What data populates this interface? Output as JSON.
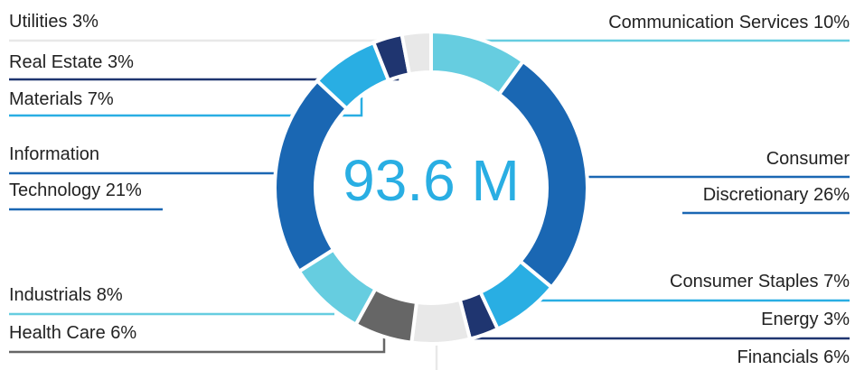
{
  "chart_data": {
    "type": "donut",
    "center_label": "93.6 M",
    "categories": [
      "Communication Services",
      "Consumer Discretionary",
      "Consumer Staples",
      "Energy",
      "Financials",
      "Health Care",
      "Industrials",
      "Information Technology",
      "Materials",
      "Real Estate",
      "Utilities"
    ],
    "values": [
      10,
      26,
      7,
      3,
      6,
      6,
      8,
      21,
      7,
      3,
      3
    ],
    "value_labels": [
      "10%",
      "26%",
      "7%",
      "3%",
      "6%",
      "6%",
      "8%",
      "21%",
      "7%",
      "3%",
      "3%"
    ],
    "colors": [
      "#66cde0",
      "#1a67b3",
      "#29aee3",
      "#1f3570",
      "#e8e8e8",
      "#666666",
      "#66cde0",
      "#1a67b3",
      "#29aee3",
      "#1f3570",
      "#e8e8e8"
    ]
  }
}
